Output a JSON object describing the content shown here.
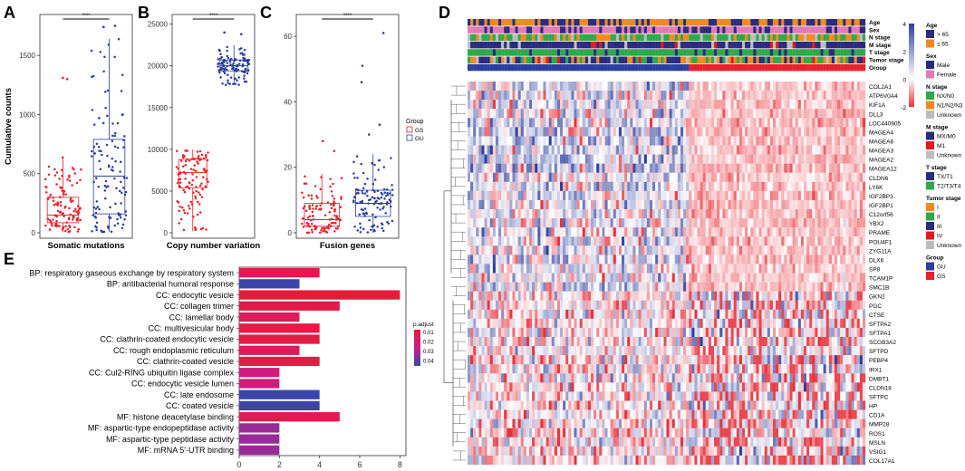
{
  "panels": {
    "A": "A",
    "B": "B",
    "C": "C",
    "D": "D",
    "E": "E"
  },
  "colors": {
    "gs": "#e8202a",
    "gu": "#2a3e9e",
    "orange": "#f08a1f",
    "pink": "#e27bb5",
    "green": "#2fa84a",
    "grey": "#bdbdbd",
    "navy": "#2b2b7f",
    "red": "#e31a1c",
    "hm_low": "#e8323c",
    "hm_mid": "#ffffff",
    "hm_high": "#2f3f9f",
    "axis": "#333333"
  },
  "chart_data": [
    {
      "id": "A",
      "type": "scatter",
      "subtype": "box-jitter",
      "title": "",
      "xlabel": "Somatic mutations",
      "ylabel": "Cumulative counts",
      "ylim": [
        0,
        1800
      ],
      "yticks": [
        0,
        500,
        1000,
        1500
      ],
      "significance": "****",
      "groups": [
        {
          "name": "GS",
          "q1": 85,
          "median": 150,
          "q3": 300,
          "whisker_low": 5,
          "whisker_high": 640,
          "n": 110,
          "outliers": [
            1300,
            1310
          ]
        },
        {
          "name": "GU",
          "q1": 160,
          "median": 480,
          "q3": 790,
          "whisker_low": 5,
          "whisker_high": 1640,
          "n": 115,
          "outliers": [
            1740,
            1750
          ]
        }
      ]
    },
    {
      "id": "B",
      "type": "scatter",
      "subtype": "box-jitter",
      "title": "",
      "xlabel": "Copy number variation",
      "ylabel": "",
      "ylim": [
        0,
        25500
      ],
      "yticks": [
        0,
        5000,
        10000,
        15000,
        20000,
        25000
      ],
      "significance": "****",
      "groups": [
        {
          "name": "GS",
          "q1": 5400,
          "median": 7200,
          "q3": 8800,
          "whisker_low": 200,
          "whisker_high": 10000,
          "n": 110,
          "outliers": []
        },
        {
          "name": "GU",
          "q1": 19400,
          "median": 20000,
          "q3": 20700,
          "whisker_low": 17700,
          "whisker_high": 22500,
          "n": 115,
          "outliers": [
            23800,
            24000
          ]
        }
      ]
    },
    {
      "id": "C",
      "type": "scatter",
      "subtype": "box-jitter",
      "title": "",
      "xlabel": "Fusion genes",
      "ylabel": "",
      "ylim": [
        0,
        65
      ],
      "yticks": [
        0,
        20,
        40,
        60
      ],
      "significance": "****",
      "legend": {
        "title": "Group",
        "entries": [
          "GS",
          "GU"
        ]
      },
      "groups": [
        {
          "name": "GS",
          "q1": 2,
          "median": 4,
          "q3": 9,
          "whisker_low": 0,
          "whisker_high": 18,
          "n": 110,
          "outliers": [
            25,
            28
          ]
        },
        {
          "name": "GU",
          "q1": 5,
          "median": 9,
          "q3": 13,
          "whisker_low": 0,
          "whisker_high": 24,
          "n": 115,
          "outliers": [
            30,
            33,
            46,
            51,
            61
          ]
        }
      ]
    },
    {
      "id": "E",
      "type": "bar",
      "orientation": "horizontal",
      "title": "",
      "xlabel": "",
      "ylabel": "",
      "xlim": [
        0,
        8.3
      ],
      "xticks": [
        0,
        2,
        4,
        6,
        8
      ],
      "categories": [
        "BP: respiratory gaseous exchange by respiratory system",
        "BP: antibacterial humoral response",
        "CC: endocytic vesicle",
        "CC: collagen trimer",
        "CC: lamellar body",
        "CC: multivesicular body",
        "CC: clathrin-coated endocytic vesicle",
        "CC: rough endoplasmic reticulum",
        "CC: clathrin-coated vesicle",
        "CC: Cul2-RING ubiquitin ligase complex",
        "CC: endocytic vesicle lumen",
        "CC: late endosome",
        "CC: coated vesicle",
        "MF: histone deacetylase binding",
        "MF: aspartic-type endopeptidase activity",
        "MF: aspartic-type peptidase activity",
        "MF: mRNA 5'-UTR binding"
      ],
      "values": [
        4,
        3,
        8,
        5,
        3,
        4,
        4,
        3,
        4,
        2,
        2,
        4,
        4,
        5,
        2,
        2,
        2
      ],
      "p_adjust": [
        0.008,
        0.046,
        0.003,
        0.007,
        0.012,
        0.006,
        0.006,
        0.012,
        0.006,
        0.02,
        0.02,
        0.046,
        0.046,
        0.008,
        0.032,
        0.032,
        0.032
      ],
      "legend": {
        "title": "p.adjust",
        "ticks": [
          0.01,
          0.02,
          0.03,
          0.04
        ]
      }
    },
    {
      "id": "D",
      "type": "heatmap",
      "title": "",
      "n_samples": 142,
      "gs_fraction": 0.445,
      "scale_range": [
        -2,
        4
      ],
      "scale_ticks": [
        4,
        2,
        0,
        -2
      ],
      "annotation_tracks": [
        "Age",
        "Sex",
        "N stage",
        "M stage",
        "T stage",
        "Tumor stage",
        "Group"
      ],
      "genes_cluster1": [
        "COL2A1",
        "ATP6V0A4",
        "KIF1A",
        "DLL3",
        "LOC440905",
        "MAGEA4",
        "MAGEA6",
        "MAGEA3",
        "MAGEA2",
        "MAGEA12",
        "CLDN6",
        "LY6K",
        "IGF2BP3",
        "IGF2BP1",
        "C12orf56",
        "YBX2",
        "PRAME",
        "POU4F1",
        "ZYG11A",
        "DLX6",
        "SP8",
        "TCAM1P",
        "SMC1B"
      ],
      "genes_cluster2": [
        "GKN2",
        "PGC",
        "CTSE",
        "SFTPA2",
        "SFTPA1",
        "SCGB3A2",
        "SFTPD",
        "PEBP4",
        "IRX1",
        "DMBT1",
        "CLDN18",
        "SFTPC",
        "HP",
        "CD1A",
        "MMP28",
        "ROS1",
        "MSLN",
        "VSIG1",
        "COL17A1"
      ],
      "legend_groups": [
        {
          "title": "Age",
          "entries": [
            {
              "label": "> 65",
              "color": "#2b2b7f"
            },
            {
              "label": "≤ 65",
              "color": "#f08a1f"
            }
          ]
        },
        {
          "title": "Sex",
          "entries": [
            {
              "label": "Male",
              "color": "#2b2b7f"
            },
            {
              "label": "Female",
              "color": "#e27bb5"
            }
          ]
        },
        {
          "title": "N stage",
          "entries": [
            {
              "label": "NX/N0",
              "color": "#2fa84a"
            },
            {
              "label": "N1/N2/N3",
              "color": "#f08a1f"
            },
            {
              "label": "Unknown",
              "color": "#bdbdbd"
            }
          ]
        },
        {
          "title": "M stage",
          "entries": [
            {
              "label": "MX/M0",
              "color": "#2b2b7f"
            },
            {
              "label": "M1",
              "color": "#e31a1c"
            },
            {
              "label": "Unknown",
              "color": "#bdbdbd"
            }
          ]
        },
        {
          "title": "T stage",
          "entries": [
            {
              "label": "TX/T1",
              "color": "#2b2b7f"
            },
            {
              "label": "T2/T3/T4",
              "color": "#2fa84a"
            }
          ]
        },
        {
          "title": "Tumor stage",
          "entries": [
            {
              "label": "I",
              "color": "#f08a1f"
            },
            {
              "label": "II",
              "color": "#2fa84a"
            },
            {
              "label": "III",
              "color": "#2b2b7f"
            },
            {
              "label": "IV",
              "color": "#e31a1c"
            },
            {
              "label": "Unknown",
              "color": "#bdbdbd"
            }
          ]
        },
        {
          "title": "Group",
          "entries": [
            {
              "label": "GU",
              "color": "#2a3e9e"
            },
            {
              "label": "GS",
              "color": "#e8202a"
            }
          ]
        }
      ]
    }
  ]
}
